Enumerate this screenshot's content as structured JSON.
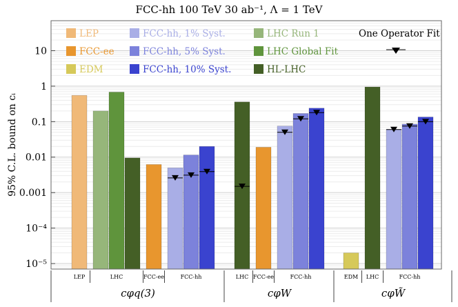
{
  "colors": {
    "LEP": "#f0b978",
    "FCC-ee": "#e8962e",
    "EDM": "#d6c95a",
    "FCC-hh, 1% Syst.": "#a9aee6",
    "FCC-hh, 5% Syst.": "#7c82db",
    "FCC-hh, 10% Syst.": "#3a43cf",
    "LHC Run 1": "#96b67a",
    "LHC Global Fit": "#5f943c",
    "HL-LHC": "#445f26"
  },
  "chart_data": {
    "type": "bar",
    "title": "FCC-hh  100 TeV  30 ab⁻¹, Λ = 1 TeV",
    "ylabel": "95% C.L. bound on cᵢ",
    "yscale": "log",
    "ylim": [
      7e-06,
      70
    ],
    "grid": true,
    "legend_position": "top",
    "yticks": [
      "10⁻⁵",
      "10⁻⁴",
      "0.001",
      "0.01",
      "0.1",
      "1",
      "10"
    ],
    "legend": {
      "entries": [
        {
          "label": "LEP",
          "series": "LEP"
        },
        {
          "label": "FCC-ee",
          "series": "FCC-ee"
        },
        {
          "label": "EDM",
          "series": "EDM"
        },
        {
          "label": "FCC-hh, 1% Syst.",
          "series": "FCC-hh, 1% Syst."
        },
        {
          "label": "FCC-hh, 5% Syst.",
          "series": "FCC-hh, 5% Syst."
        },
        {
          "label": "FCC-hh, 10% Syst.",
          "series": "FCC-hh, 10% Syst."
        },
        {
          "label": "LHC Run 1",
          "series": "LHC Run 1"
        },
        {
          "label": "LHC Global Fit",
          "series": "LHC Global Fit"
        },
        {
          "label": "HL-LHC",
          "series": "HL-LHC"
        }
      ],
      "marker_label": "One Operator Fit"
    },
    "groups": [
      {
        "operator": "cφq(3)",
        "subgroups": [
          {
            "label": "LEP",
            "bars": [
              {
                "series": "LEP",
                "value": 0.55
              }
            ]
          },
          {
            "label": "LHC",
            "bars": [
              {
                "series": "LHC Run 1",
                "value": 0.2
              },
              {
                "series": "LHC Global Fit",
                "value": 0.68
              },
              {
                "series": "HL-LHC",
                "value": 0.0095
              }
            ]
          },
          {
            "label": "FCC-ee",
            "bars": [
              {
                "series": "FCC-ee",
                "value": 0.0062
              }
            ]
          },
          {
            "label": "FCC-hh",
            "bars": [
              {
                "series": "FCC-hh, 1% Syst.",
                "value": 0.005,
                "one_op_fit": 0.0026
              },
              {
                "series": "FCC-hh, 5% Syst.",
                "value": 0.0115,
                "one_op_fit": 0.0031
              },
              {
                "series": "FCC-hh, 10% Syst.",
                "value": 0.02,
                "one_op_fit": 0.0039
              }
            ]
          }
        ]
      },
      {
        "operator": "cφW",
        "subgroups": [
          {
            "label": "LHC",
            "bars": [
              {
                "series": "HL-LHC",
                "value": 0.36,
                "one_op_fit": 0.0015
              }
            ]
          },
          {
            "label": "FCC-ee",
            "bars": [
              {
                "series": "FCC-ee",
                "value": 0.019
              }
            ]
          },
          {
            "label": "FCC-hh",
            "bars": [
              {
                "series": "FCC-hh, 1% Syst.",
                "value": 0.075,
                "one_op_fit": 0.05
              },
              {
                "series": "FCC-hh, 5% Syst.",
                "value": 0.17,
                "one_op_fit": 0.12
              },
              {
                "series": "FCC-hh, 10% Syst.",
                "value": 0.24,
                "one_op_fit": 0.18
              }
            ]
          }
        ]
      },
      {
        "operator": "cφW̃",
        "subgroups": [
          {
            "label": "EDM",
            "bars": [
              {
                "series": "EDM",
                "value": 2e-05
              }
            ]
          },
          {
            "label": "LHC",
            "bars": [
              {
                "series": "HL-LHC",
                "value": 0.95
              }
            ]
          },
          {
            "label": "FCC-hh",
            "bars": [
              {
                "series": "FCC-hh, 1% Syst.",
                "value": 0.06,
                "one_op_fit": 0.06
              },
              {
                "series": "FCC-hh, 5% Syst.",
                "value": 0.085,
                "one_op_fit": 0.075
              },
              {
                "series": "FCC-hh, 10% Syst.",
                "value": 0.135,
                "one_op_fit": 0.1
              }
            ]
          }
        ]
      }
    ]
  }
}
